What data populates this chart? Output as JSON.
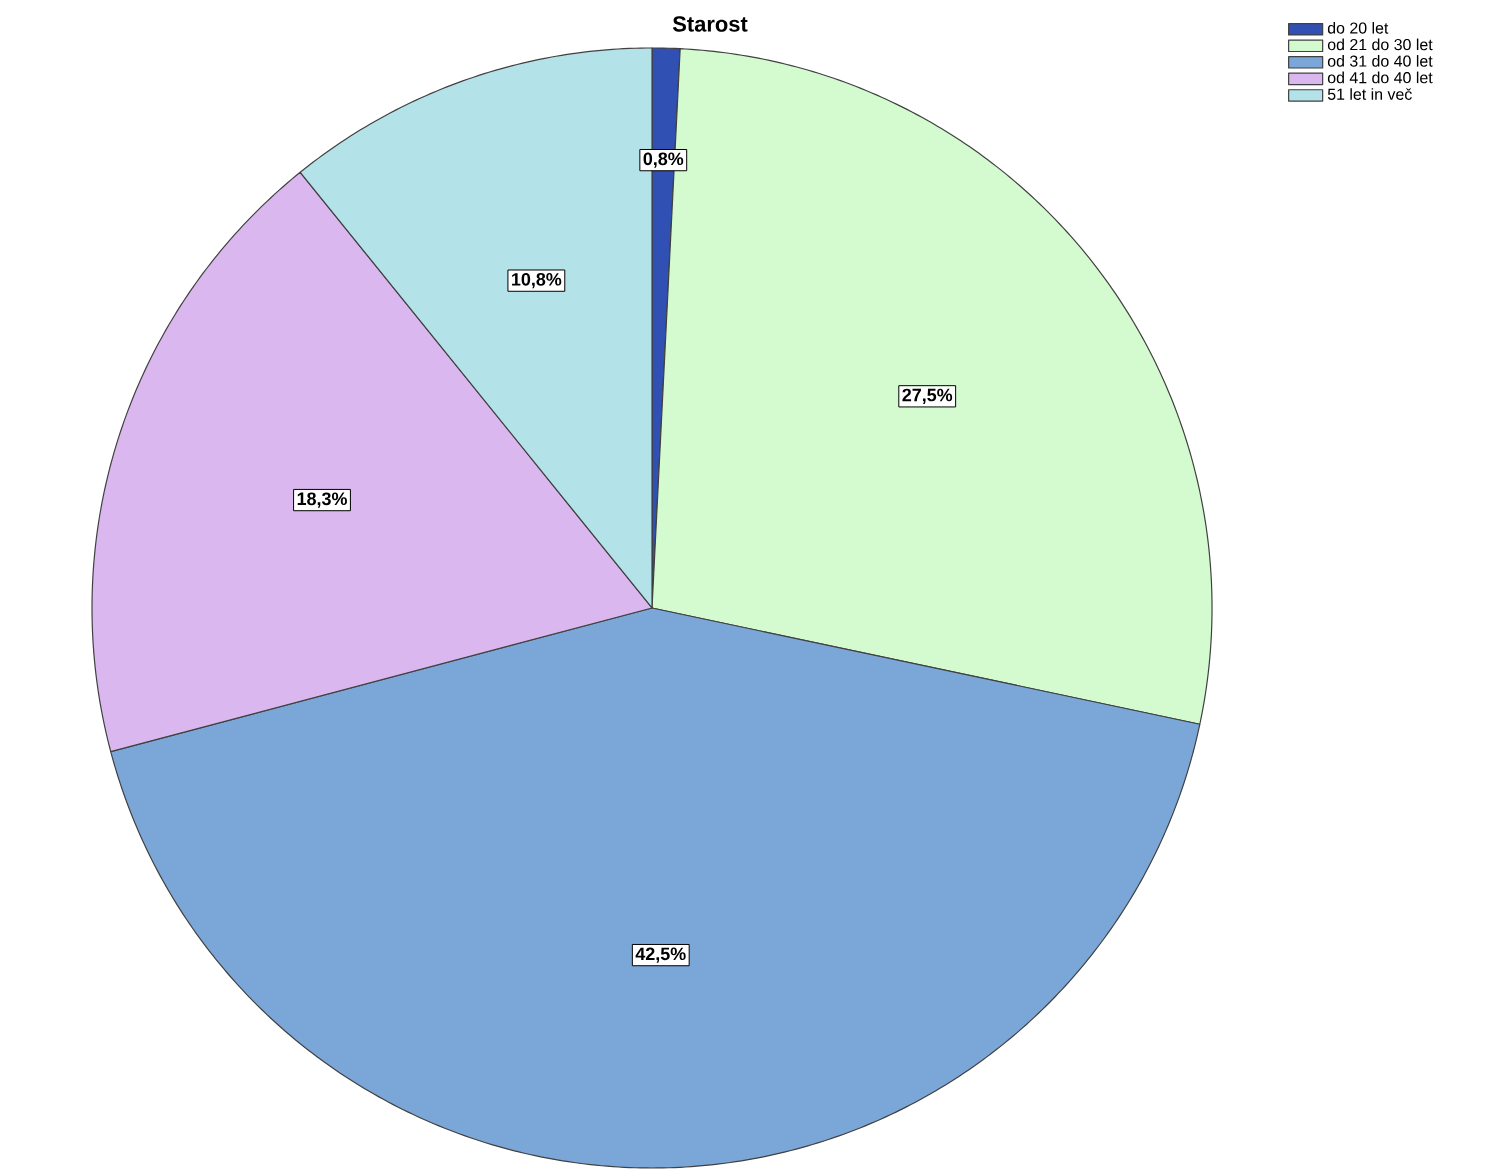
{
  "chart_data": {
    "type": "pie",
    "title": "Starost",
    "categories": [
      "do 20 let",
      "od 21 do 30 let",
      "od 31 do 40 let",
      "od 41 do 40 let",
      "51 let in več"
    ],
    "values": [
      0.8,
      27.5,
      42.5,
      18.3,
      10.8
    ],
    "value_labels": [
      "0,8%",
      "27,5%",
      "42,5%",
      "18,3%",
      "10,8%"
    ],
    "colors": [
      "#3050b4",
      "#d4fbcf",
      "#7ba7d8",
      "#dab7ee",
      "#b3e3e8"
    ],
    "legend": "top right"
  }
}
